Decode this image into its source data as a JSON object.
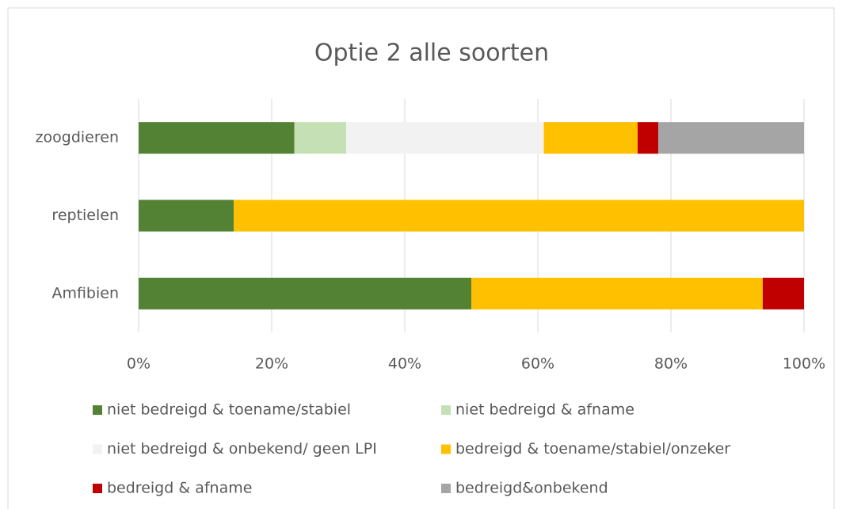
{
  "chart_data": {
    "type": "bar",
    "orientation": "horizontal",
    "stacked": true,
    "title": "Optie 2 alle soorten",
    "categories": [
      "zoogdieren",
      "reptielen",
      "Amfibien"
    ],
    "series": [
      {
        "name": "niet bedreigd & toename/stabiel",
        "color": "#548235",
        "values": [
          23.4,
          14.3,
          50
        ]
      },
      {
        "name": "niet bedreigd & afname",
        "color": "#c5e0b4",
        "values": [
          7.8,
          0,
          0
        ]
      },
      {
        "name": "niet bedreigd & onbekend/ geen LPI",
        "color": "#f2f2f2",
        "values": [
          29.7,
          0,
          0
        ]
      },
      {
        "name": "bedreigd & toename/stabiel/onzeker",
        "color": "#ffc000",
        "values": [
          14.1,
          85.7,
          43.8
        ]
      },
      {
        "name": "bedreigd & afname",
        "color": "#c00000",
        "values": [
          3.1,
          0,
          6.2
        ]
      },
      {
        "name": "bedreigd&onbekend",
        "color": "#a5a5a5",
        "values": [
          21.9,
          0,
          0
        ]
      }
    ],
    "xlim": [
      0,
      100
    ],
    "xticks": [
      {
        "value": 0,
        "label": "0%"
      },
      {
        "value": 20,
        "label": "20%"
      },
      {
        "value": 40,
        "label": "40%"
      },
      {
        "value": 60,
        "label": "60%"
      },
      {
        "value": 80,
        "label": "80%"
      },
      {
        "value": 100,
        "label": "100%"
      }
    ],
    "grid": true,
    "legend": "bottom"
  }
}
